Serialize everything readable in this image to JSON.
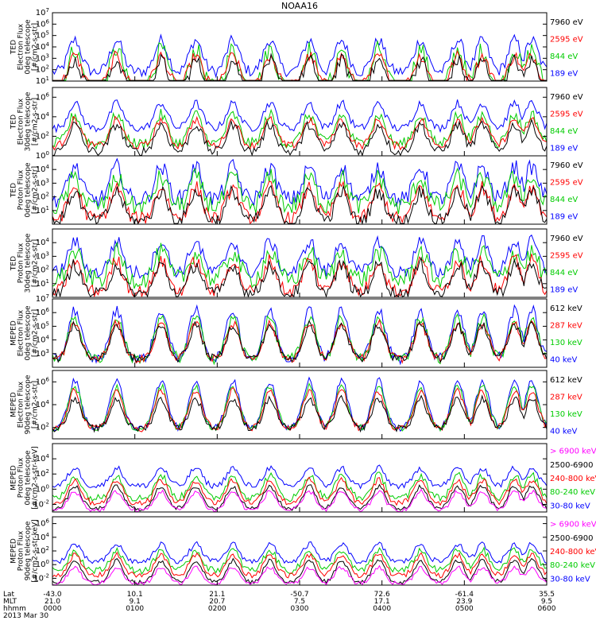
{
  "title": "NOAA16",
  "chart_data": [
    {
      "type": "line",
      "ylabel": [
        "TED",
        "Electron Flux",
        "0deg telescope",
        "[#/cm2-s-str]"
      ],
      "yscale": "log",
      "ylim_exp": [
        1,
        7
      ],
      "tick_exps": [
        1,
        2,
        3,
        4,
        5,
        6,
        7
      ],
      "series": [
        {
          "name": "7960 eV",
          "color": "#000000",
          "level": 1.6,
          "base": 0.1,
          "spread": 0.6
        },
        {
          "name": "2595 eV",
          "color": "#ff0000",
          "level": 2.0,
          "base": 0.6,
          "spread": 0.5
        },
        {
          "name": "844 eV",
          "color": "#00cc00",
          "level": 2.6,
          "base": 0.3,
          "spread": 0.8
        },
        {
          "name": "189 eV",
          "color": "#0000ff",
          "level": 3.4,
          "base": 1.8,
          "spread": 0.5
        }
      ]
    },
    {
      "type": "line",
      "ylabel": [
        "TED",
        "Electron Flux",
        "30deg telescope",
        "[#/cm2-s-str]"
      ],
      "yscale": "log",
      "ylim_exp": [
        0,
        7
      ],
      "tick_exps": [
        0,
        2,
        4,
        6
      ],
      "series": [
        {
          "name": "7960 eV",
          "color": "#000000",
          "level": 2.0,
          "base": 0.4,
          "spread": 0.5
        },
        {
          "name": "2595 eV",
          "color": "#ff0000",
          "level": 2.5,
          "base": 1.0,
          "spread": 0.4
        },
        {
          "name": "844 eV",
          "color": "#00cc00",
          "level": 3.0,
          "base": 1.2,
          "spread": 0.6
        },
        {
          "name": "189 eV",
          "color": "#0000ff",
          "level": 4.2,
          "base": 2.8,
          "spread": 0.4
        }
      ]
    },
    {
      "type": "line",
      "ylabel": [
        "TED",
        "Proton Flux",
        "0deg telescope",
        "[#/cm2-s-str]"
      ],
      "yscale": "log",
      "ylim_exp": [
        0,
        5
      ],
      "tick_exps": [
        1,
        2,
        3,
        4
      ],
      "series": [
        {
          "name": "7960 eV",
          "color": "#000000",
          "level": 1.2,
          "base": 0.2,
          "spread": 0.5
        },
        {
          "name": "2595 eV",
          "color": "#ff0000",
          "level": 1.5,
          "base": 0.4,
          "spread": 0.5
        },
        {
          "name": "844 eV",
          "color": "#00cc00",
          "level": 2.2,
          "base": 1.3,
          "spread": 0.7
        },
        {
          "name": "189 eV",
          "color": "#0000ff",
          "level": 3.0,
          "base": 1.8,
          "spread": 0.6
        }
      ]
    },
    {
      "type": "line",
      "ylabel": [
        "TED",
        "Proton Flux",
        "30deg telescope",
        "[#/cm2-s-str]"
      ],
      "yscale": "log",
      "ylim_exp": [
        0,
        5
      ],
      "tick_exps": [
        1,
        2,
        3,
        4
      ],
      "series": [
        {
          "name": "7960 eV",
          "color": "#000000",
          "level": 1.2,
          "base": 0.2,
          "spread": 0.5
        },
        {
          "name": "2595 eV",
          "color": "#ff0000",
          "level": 1.5,
          "base": 0.4,
          "spread": 0.5
        },
        {
          "name": "844 eV",
          "color": "#00cc00",
          "level": 2.1,
          "base": 1.3,
          "spread": 0.7
        },
        {
          "name": "189 eV",
          "color": "#0000ff",
          "level": 2.9,
          "base": 1.8,
          "spread": 0.5
        }
      ]
    },
    {
      "type": "line",
      "ylabel": [
        "MEPED",
        "Electron Flux",
        "0deg telescope",
        "[#/cm2-s-str]"
      ],
      "yscale": "log",
      "ylim_exp": [
        2,
        7
      ],
      "tick_exps": [
        3,
        4,
        5,
        6,
        7
      ],
      "series": [
        {
          "name": "612 keV",
          "color": "#000000",
          "level": 3.9,
          "base": 2.6,
          "spread": 0.3
        },
        {
          "name": "287 keV",
          "color": "#ff0000",
          "level": 4.0,
          "base": 2.6,
          "spread": 0.3
        },
        {
          "name": "130 keV",
          "color": "#00cc00",
          "level": 4.4,
          "base": 2.6,
          "spread": 0.4
        },
        {
          "name": "40 keV",
          "color": "#0000ff",
          "level": 5.0,
          "base": 2.6,
          "spread": 0.4
        }
      ]
    },
    {
      "type": "line",
      "ylabel": [
        "MEPED",
        "Electron Flux",
        "90deg telescope",
        "[#/cm2-s-str]"
      ],
      "yscale": "log",
      "ylim_exp": [
        1,
        7
      ],
      "tick_exps": [
        2,
        4,
        6
      ],
      "series": [
        {
          "name": "612 keV",
          "color": "#000000",
          "level": 3.3,
          "base": 1.9,
          "spread": 0.3
        },
        {
          "name": "287 keV",
          "color": "#ff0000",
          "level": 4.0,
          "base": 1.9,
          "spread": 0.3
        },
        {
          "name": "130 keV",
          "color": "#00cc00",
          "level": 4.4,
          "base": 1.9,
          "spread": 0.3
        },
        {
          "name": "40 keV",
          "color": "#0000ff",
          "level": 4.9,
          "base": 1.9,
          "spread": 0.3
        }
      ]
    },
    {
      "type": "line",
      "ylabel": [
        "MEPED",
        "Proton Flux",
        "0deg telescope",
        "[#/cm2-s-str-keV]"
      ],
      "yscale": "log",
      "ylim_exp": [
        -3,
        6
      ],
      "tick_exps": [
        -2,
        0,
        2,
        4
      ],
      "series": [
        {
          "name": "> 6900 keV",
          "color": "#ff00ff",
          "level": -1.5,
          "base": -2.8,
          "spread": 0.3
        },
        {
          "name": "2500-6900",
          "color": "#000000",
          "level": -0.8,
          "base": -2.6,
          "spread": 0.3
        },
        {
          "name": "240-800 keV",
          "color": "#ff0000",
          "level": 0.0,
          "base": -1.8,
          "spread": 0.4
        },
        {
          "name": "80-240 keV",
          "color": "#00cc00",
          "level": 0.6,
          "base": -1.2,
          "spread": 0.5
        },
        {
          "name": "30-80 keV",
          "color": "#0000ff",
          "level": 1.6,
          "base": 0.4,
          "spread": 0.4
        }
      ]
    },
    {
      "type": "line",
      "ylabel": [
        "MEPED",
        "Proton Flux",
        "90deg telescope",
        "[#/cm2-s-str-keV]"
      ],
      "yscale": "log",
      "ylim_exp": [
        -3,
        7
      ],
      "tick_exps": [
        -2,
        0,
        2,
        4,
        6
      ],
      "series": [
        {
          "name": "> 6900 keV",
          "color": "#ff00ff",
          "level": -1.6,
          "base": -2.8,
          "spread": 0.3
        },
        {
          "name": "2500-6900",
          "color": "#000000",
          "level": -0.6,
          "base": -2.6,
          "spread": 0.3
        },
        {
          "name": "240-800 keV",
          "color": "#ff0000",
          "level": 0.2,
          "base": -1.6,
          "spread": 0.4
        },
        {
          "name": "80-240 keV",
          "color": "#00cc00",
          "level": 0.9,
          "base": -0.9,
          "spread": 0.5
        },
        {
          "name": "30-80 keV",
          "color": "#0000ff",
          "level": 1.8,
          "base": 0.4,
          "spread": 0.4
        }
      ]
    }
  ],
  "x_axis": {
    "row_labels": [
      "Lat",
      "MLT",
      "hhmm",
      "2013 Mar 30"
    ],
    "ticks": [
      {
        "lat": "-43.0",
        "mlt": "21.0",
        "hhmm": "0000"
      },
      {
        "lat": "10.1",
        "mlt": "9.1",
        "hhmm": "0100"
      },
      {
        "lat": "21.1",
        "mlt": "20.7",
        "hhmm": "0200"
      },
      {
        "lat": "-50.7",
        "mlt": "7.5",
        "hhmm": "0300"
      },
      {
        "lat": "72.6",
        "mlt": "17.1",
        "hhmm": "0400"
      },
      {
        "lat": "-61.4",
        "mlt": "23.9",
        "hhmm": "0500"
      },
      {
        "lat": "35.5",
        "mlt": "9.5",
        "hhmm": "0600"
      }
    ]
  },
  "pass_centers_frac": [
    0.045,
    0.13,
    0.22,
    0.29,
    0.365,
    0.44,
    0.52,
    0.585,
    0.66,
    0.745,
    0.82,
    0.87,
    0.935,
    0.97
  ]
}
